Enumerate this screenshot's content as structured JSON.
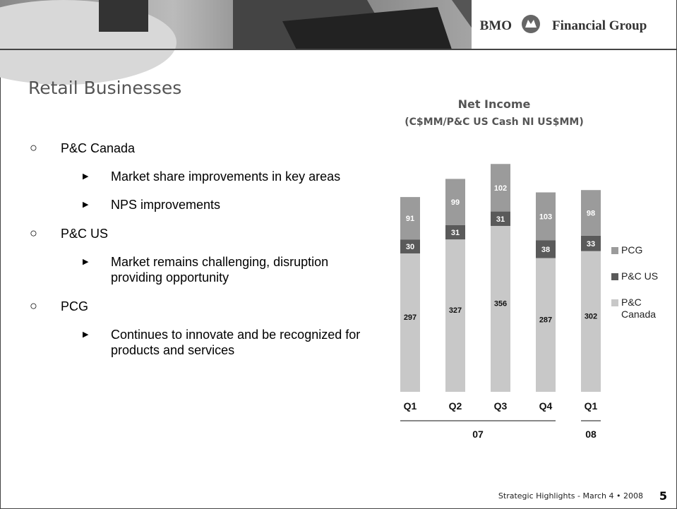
{
  "header": {
    "brand": "BMO",
    "brand_suffix": "Financial Group"
  },
  "slide": {
    "title": "Retail Businesses",
    "bullets": [
      {
        "text": "P&C Canada",
        "subs": [
          "Market share improvements in key areas",
          "NPS improvements"
        ]
      },
      {
        "text": "P&C US",
        "subs": [
          "Market remains challenging, disruption providing opportunity"
        ]
      },
      {
        "text": "PCG",
        "subs": [
          "Continues to innovate and be recognized for products and services"
        ]
      }
    ]
  },
  "chart_data": {
    "type": "bar",
    "stacked": true,
    "title": "Net Income",
    "subtitle": "(C$MM/P&C US Cash NI US$MM)",
    "categories": [
      "Q1",
      "Q2",
      "Q3",
      "Q4",
      "Q1"
    ],
    "category_groups": [
      "07",
      "07",
      "07",
      "07",
      "08"
    ],
    "series": [
      {
        "name": "P&C Canada",
        "color": "#c8c8c8",
        "values": [
          297,
          327,
          356,
          287,
          302
        ]
      },
      {
        "name": "P&C US",
        "color": "#5a5a5a",
        "values": [
          30,
          31,
          31,
          38,
          33
        ]
      },
      {
        "name": "PCG",
        "color": "#9b9b9b",
        "values": [
          91,
          99,
          102,
          103,
          98
        ]
      }
    ],
    "legend": "right"
  },
  "footer": {
    "text": "Strategic Highlights - March 4 • 2008",
    "page": 5
  }
}
